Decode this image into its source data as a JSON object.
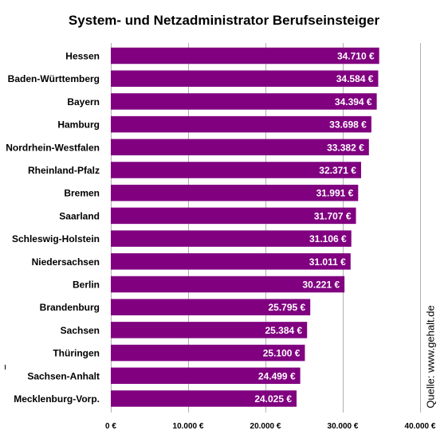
{
  "chart_data": {
    "type": "bar",
    "orientation": "horizontal",
    "title": "System- und Netzadministrator Berufseinsteiger",
    "source": "Quelle: www.gehalt.de",
    "categories": [
      "Hessen",
      "Baden-Württemberg",
      "Bayern",
      "Hamburg",
      "Nordrhein-Westfalen",
      "Rheinland-Pfalz",
      "Bremen",
      "Saarland",
      "Schleswig-Holstein",
      "Niedersachsen",
      "Berlin",
      "Brandenburg",
      "Sachsen",
      "Thüringen",
      "Sachsen-Anhalt",
      "Mecklenburg-Vorp."
    ],
    "values": [
      34710,
      34584,
      34394,
      33698,
      33382,
      32371,
      31991,
      31707,
      31106,
      31011,
      30221,
      25795,
      25384,
      25100,
      24499,
      24025
    ],
    "value_labels": [
      "34.710 €",
      "34.584 €",
      "34.394 €",
      "33.698 €",
      "33.382 €",
      "32.371 €",
      "31.991 €",
      "31.707 €",
      "31.106 €",
      "31.011 €",
      "30.221 €",
      "25.795 €",
      "25.384 €",
      "25.100 €",
      "24.499 €",
      "24.025 €"
    ],
    "xlim": [
      0,
      40000
    ],
    "xticks": [
      0,
      10000,
      20000,
      30000,
      40000
    ],
    "xtick_labels": [
      "0 €",
      "10.000 €",
      "20.000 €",
      "30.000 €",
      "40.000 €"
    ],
    "grid": true,
    "bar_color": "#800080"
  }
}
